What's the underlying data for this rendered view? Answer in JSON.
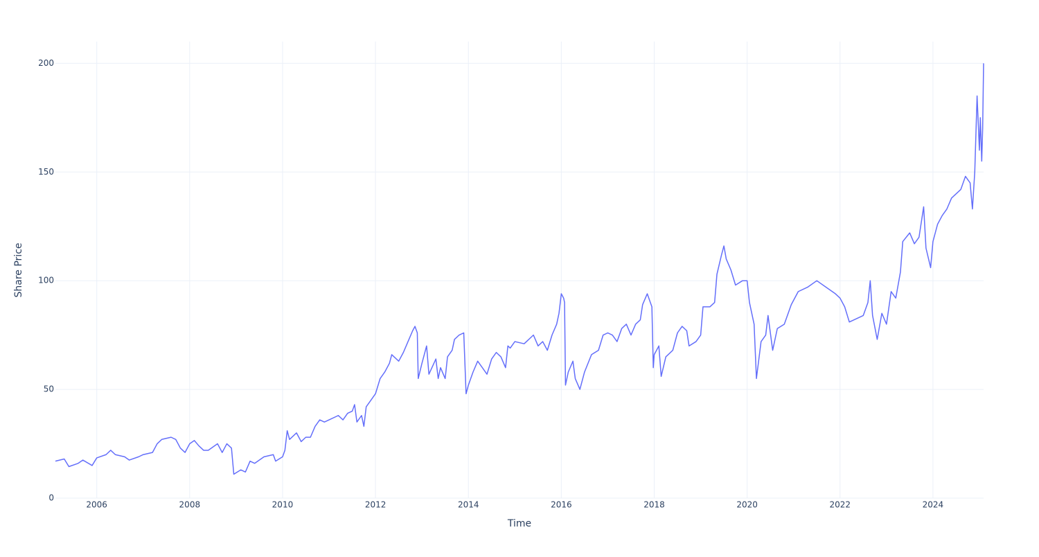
{
  "chart_data": {
    "type": "line",
    "x_label": "Time",
    "y_label": "Share Price",
    "color": "#636efa",
    "grid": true,
    "xlim": [
      2005.11,
      2025.09
    ],
    "ylim": [
      0,
      210
    ],
    "xticks": [
      2006,
      2008,
      2010,
      2012,
      2014,
      2016,
      2018,
      2020,
      2022,
      2024
    ],
    "yticks": [
      0,
      50,
      100,
      150,
      200
    ],
    "x": [
      2005.11,
      2005.3,
      2005.4,
      2005.6,
      2005.7,
      2005.9,
      2006.0,
      2006.2,
      2006.3,
      2006.4,
      2006.6,
      2006.7,
      2006.9,
      2007.0,
      2007.2,
      2007.3,
      2007.4,
      2007.6,
      2007.7,
      2007.8,
      2007.9,
      2008.0,
      2008.1,
      2008.2,
      2008.3,
      2008.4,
      2008.6,
      2008.7,
      2008.8,
      2008.9,
      2008.95,
      2009.1,
      2009.2,
      2009.3,
      2009.4,
      2009.6,
      2009.8,
      2009.85,
      2010.0,
      2010.05,
      2010.1,
      2010.15,
      2010.3,
      2010.4,
      2010.5,
      2010.6,
      2010.7,
      2010.8,
      2010.9,
      2011.0,
      2011.2,
      2011.3,
      2011.4,
      2011.5,
      2011.55,
      2011.6,
      2011.7,
      2011.75,
      2011.8,
      2011.9,
      2012.0,
      2012.1,
      2012.2,
      2012.3,
      2012.35,
      2012.5,
      2012.6,
      2012.7,
      2012.8,
      2012.85,
      2012.9,
      2012.92,
      2013.0,
      2013.1,
      2013.15,
      2013.3,
      2013.35,
      2013.4,
      2013.5,
      2013.55,
      2013.65,
      2013.7,
      2013.8,
      2013.9,
      2013.95,
      2014.0,
      2014.1,
      2014.2,
      2014.3,
      2014.4,
      2014.5,
      2014.6,
      2014.7,
      2014.8,
      2014.85,
      2014.9,
      2015.0,
      2015.2,
      2015.4,
      2015.5,
      2015.6,
      2015.7,
      2015.8,
      2015.9,
      2015.95,
      2016.0,
      2016.05,
      2016.07,
      2016.09,
      2016.15,
      2016.25,
      2016.3,
      2016.4,
      2016.5,
      2016.65,
      2016.8,
      2016.9,
      2017.0,
      2017.1,
      2017.2,
      2017.3,
      2017.4,
      2017.5,
      2017.6,
      2017.7,
      2017.75,
      2017.85,
      2017.95,
      2017.98,
      2018.0,
      2018.1,
      2018.15,
      2018.25,
      2018.4,
      2018.5,
      2018.6,
      2018.7,
      2018.75,
      2018.9,
      2019.0,
      2019.05,
      2019.2,
      2019.3,
      2019.35,
      2019.45,
      2019.5,
      2019.55,
      2019.65,
      2019.75,
      2019.9,
      2020.0,
      2020.05,
      2020.15,
      2020.2,
      2020.3,
      2020.4,
      2020.45,
      2020.55,
      2020.65,
      2020.8,
      2020.95,
      2021.1,
      2021.3,
      2021.5,
      2021.7,
      2021.9,
      2022.0,
      2022.1,
      2022.2,
      2022.3,
      2022.5,
      2022.6,
      2022.65,
      2022.7,
      2022.8,
      2022.9,
      2023.0,
      2023.1,
      2023.2,
      2023.3,
      2023.35,
      2023.5,
      2023.6,
      2023.7,
      2023.8,
      2023.85,
      2023.95,
      2024.0,
      2024.1,
      2024.2,
      2024.3,
      2024.4,
      2024.5,
      2024.6,
      2024.7,
      2024.8,
      2024.85,
      2024.9,
      2024.95,
      2025.0,
      2025.02,
      2025.05,
      2025.07,
      2025.09
    ],
    "values": [
      17,
      18,
      14.5,
      16,
      17.5,
      15,
      18.5,
      20,
      22,
      20,
      19,
      17.5,
      19,
      20,
      21,
      25,
      27,
      28,
      27,
      23,
      21,
      25,
      26.5,
      24,
      22,
      22,
      25,
      21,
      25,
      23,
      11,
      13,
      12,
      17,
      16,
      19,
      20,
      17,
      19,
      22,
      31,
      27,
      30,
      26,
      28,
      28,
      33,
      36,
      35,
      36,
      38,
      36,
      39,
      40,
      43,
      35,
      38,
      33,
      42,
      45,
      48,
      55,
      58,
      62,
      66,
      63,
      67,
      72,
      77,
      79,
      76,
      55,
      62,
      70,
      57,
      64,
      55,
      60,
      55,
      65,
      68,
      73,
      75,
      76,
      48,
      52,
      58,
      63,
      60,
      57,
      64,
      67,
      65,
      60,
      70,
      69,
      72,
      71,
      75,
      70,
      72,
      68,
      75,
      80,
      85,
      94,
      92,
      90,
      52,
      58,
      63,
      55,
      50,
      58,
      66,
      68,
      75,
      76,
      75,
      72,
      78,
      80,
      75,
      80,
      82,
      89,
      94,
      88,
      60,
      66,
      70,
      56,
      65,
      68,
      76,
      79,
      77,
      70,
      72,
      75,
      88,
      88,
      90,
      103,
      112,
      116,
      110,
      105,
      98,
      100,
      100,
      90,
      80,
      55,
      72,
      75,
      84,
      68,
      78,
      80,
      89,
      95,
      97,
      100,
      97,
      94,
      92,
      88,
      81,
      82,
      84,
      90,
      100,
      84,
      73,
      85,
      80,
      95,
      92,
      104,
      118,
      122,
      117,
      120,
      134,
      115,
      106,
      118,
      126,
      130,
      133,
      138,
      140,
      142,
      148,
      145,
      133,
      150,
      185,
      160,
      175,
      155,
      170,
      200
    ]
  }
}
